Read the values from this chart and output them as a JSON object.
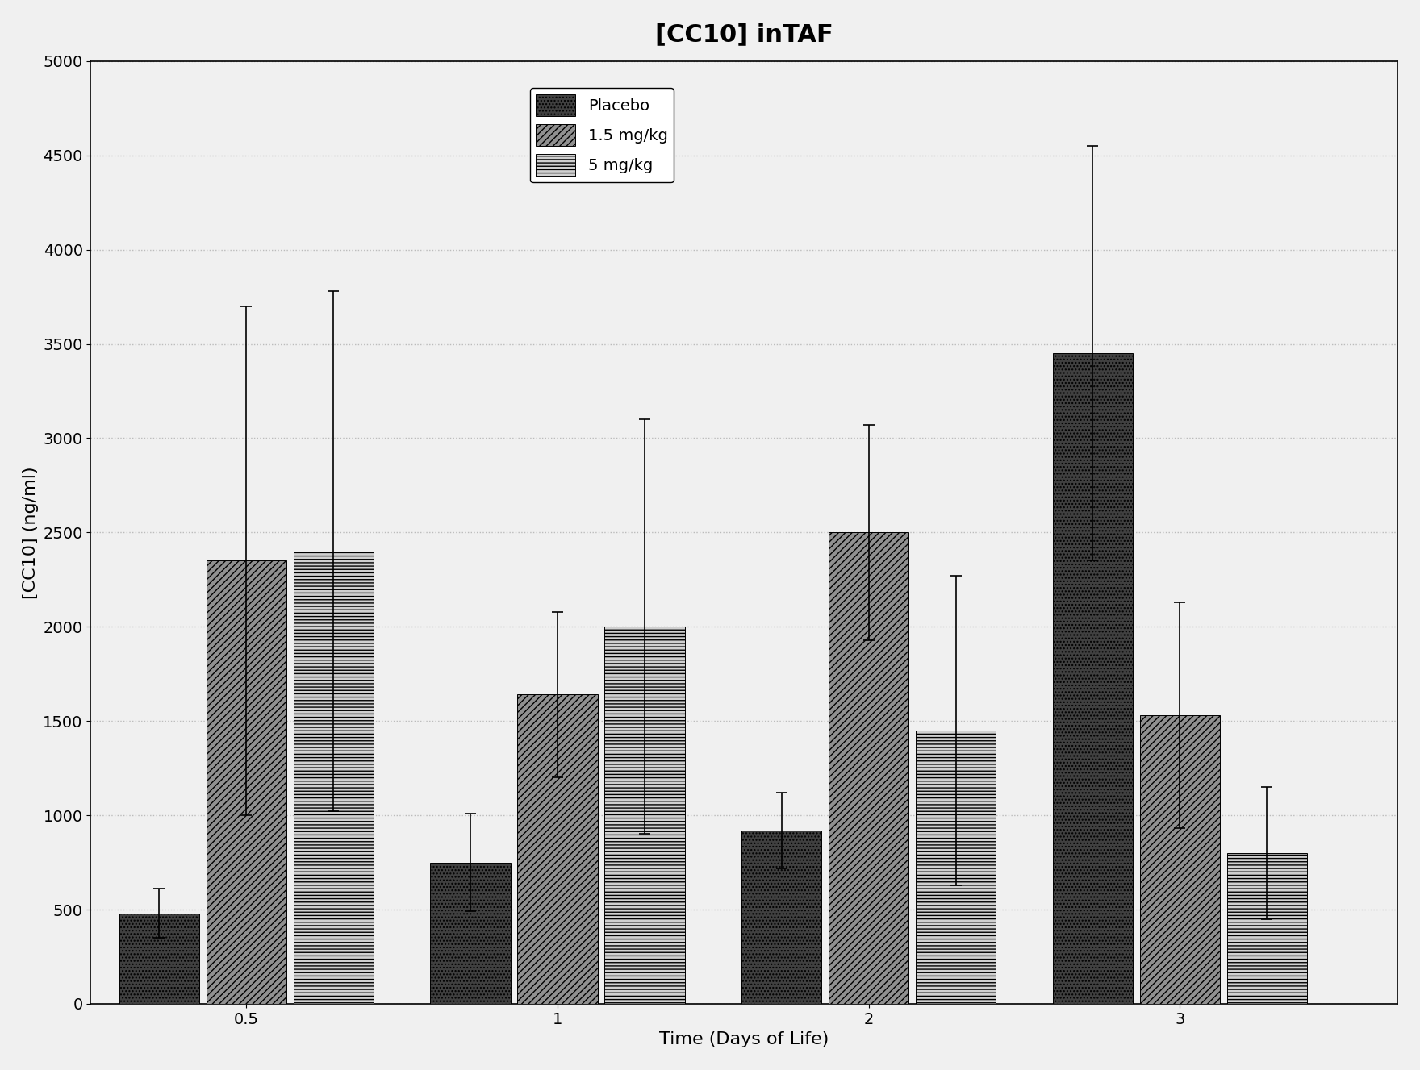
{
  "title": "[CC10] inTAF",
  "xlabel": "Time (Days of Life)",
  "ylabel": "[CC10] (ng/ml)",
  "x_labels": [
    "0.5",
    "1",
    "2",
    "3"
  ],
  "x_positions": [
    1,
    2,
    3,
    4
  ],
  "bar_width": 0.28,
  "groups": [
    "Placebo",
    "1.5 mg/kg",
    "5 mg/kg"
  ],
  "values": [
    [
      480,
      750,
      920,
      3450
    ],
    [
      2350,
      1640,
      2500,
      1530
    ],
    [
      2400,
      2000,
      1450,
      800
    ]
  ],
  "errors": [
    [
      130,
      260,
      200,
      1100
    ],
    [
      1350,
      440,
      570,
      600
    ],
    [
      1380,
      1100,
      820,
      350
    ]
  ],
  "bar_colors": [
    "#404040",
    "#909090",
    "#d0d0d0"
  ],
  "hatch_patterns": [
    "....",
    "////",
    "----"
  ],
  "ylim": [
    0,
    5000
  ],
  "yticks": [
    0,
    500,
    1000,
    1500,
    2000,
    2500,
    3000,
    3500,
    4000,
    4500,
    5000
  ],
  "grid_color": "#bbbbbb",
  "background_color": "#f0f0f0",
  "title_fontsize": 22,
  "axis_label_fontsize": 16,
  "tick_fontsize": 14,
  "legend_fontsize": 14
}
